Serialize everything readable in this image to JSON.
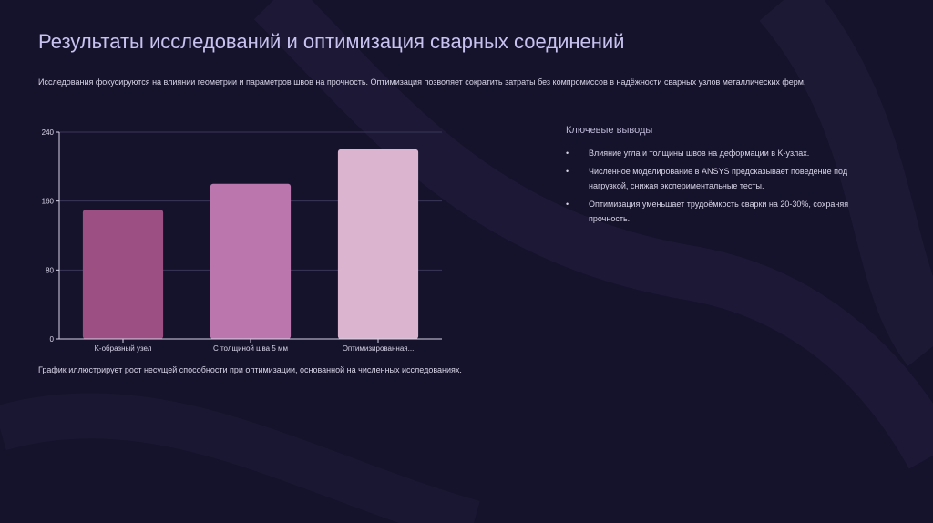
{
  "slide": {
    "title": "Результаты исследований и оптимизация сварных соединений",
    "intro": "Исследования фокусируются на влиянии геометрии и параметров швов на прочность. Оптимизация позволяет сократить затраты без компромиссов в надёжности сварных узлов металлических ферм.",
    "caption": "График иллюстрирует рост несущей способности при оптимизации, основанной на численных исследованиях."
  },
  "findings": {
    "heading": "Ключевые выводы",
    "bullet": "•",
    "items": [
      "Влияние угла и толщины швов на деформации в K-узлах.",
      "Численное моделирование в ANSYS предсказывает поведение под нагрузкой, снижая экспериментальные тесты.",
      "Оптимизация уменьшает трудоёмкость сварки на 20-30%, сохраняя прочность."
    ]
  },
  "chart_data": {
    "type": "bar",
    "title": "",
    "xlabel": "",
    "ylabel": "",
    "categories": [
      "K-образный узел",
      "С толщиной шва 5 мм",
      "Оптимизированная..."
    ],
    "values": [
      150,
      180,
      220
    ],
    "ylim": [
      0,
      240
    ],
    "yticks": [
      0,
      80,
      160,
      240
    ],
    "grid": true,
    "colors": [
      "#9c4f82",
      "#bb77ad",
      "#dbb4d0"
    ],
    "axis_color": "#d9d6ea",
    "grid_color": "#3a3658"
  }
}
